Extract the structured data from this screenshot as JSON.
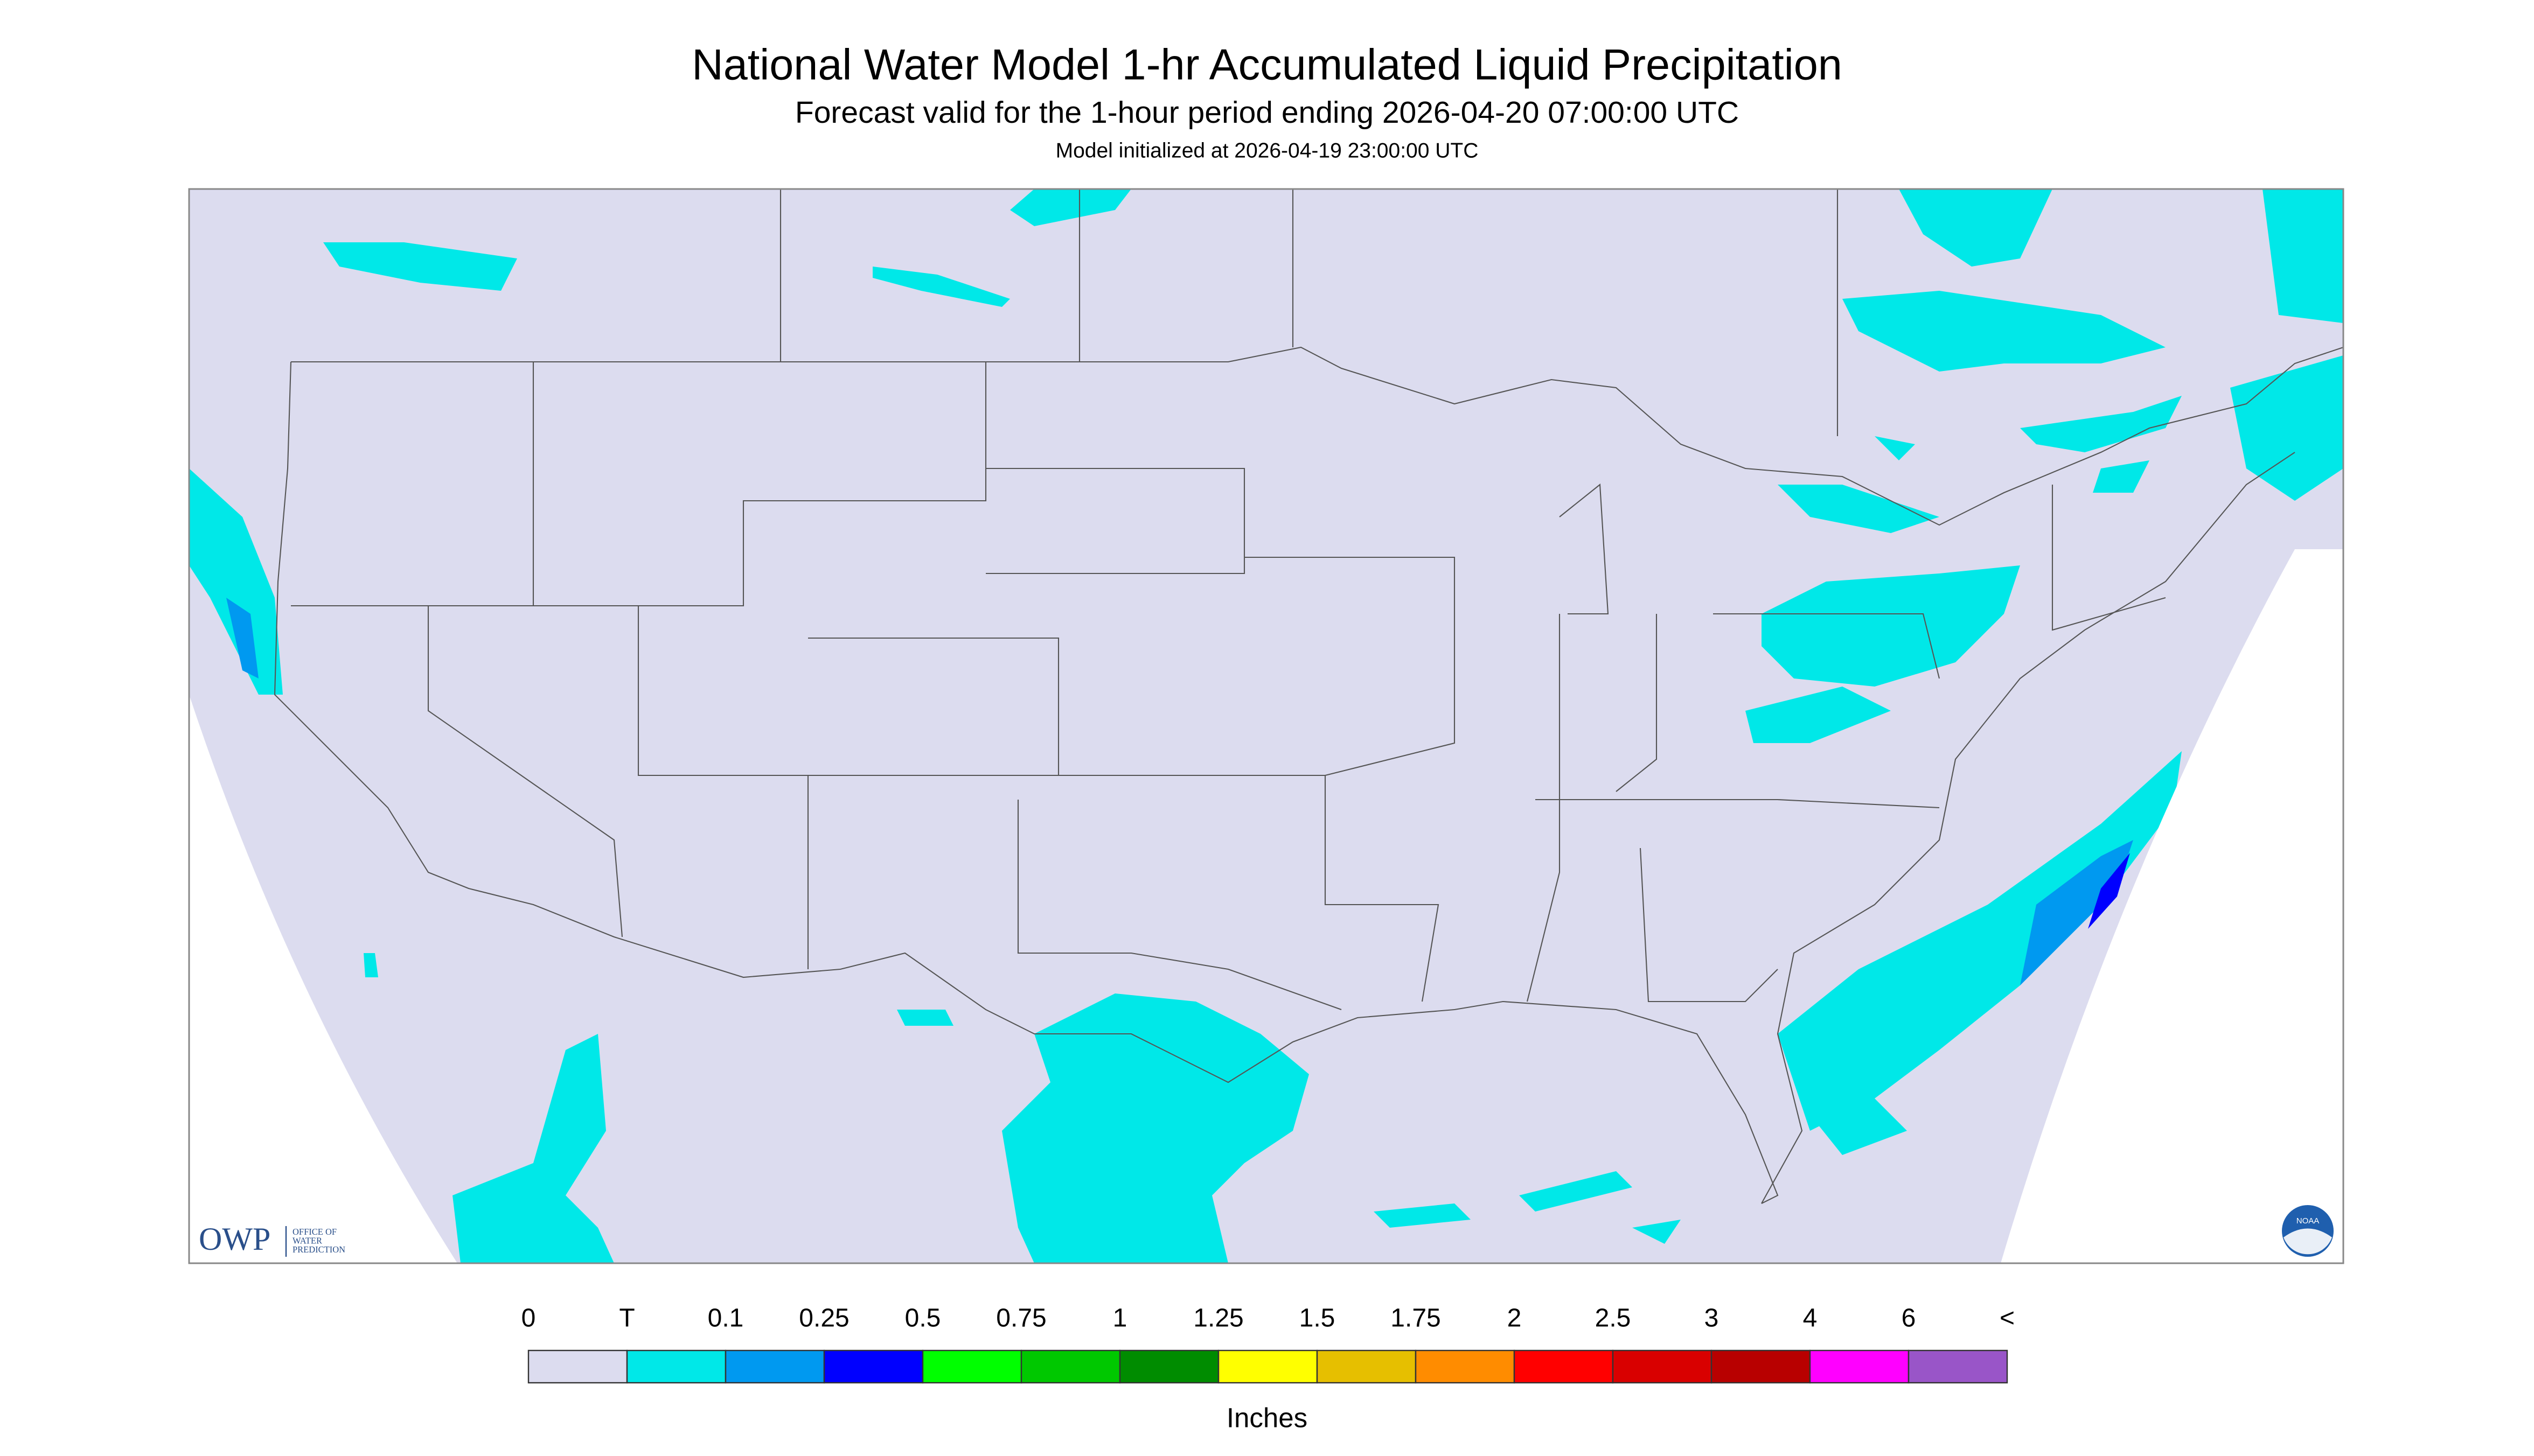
{
  "header": {
    "title": "National Water Model 1-hr Accumulated Liquid Precipitation",
    "subtitle": "Forecast valid for the 1-hour period ending 2026-04-20 07:00:00 UTC",
    "initialized": "Model initialized at 2026-04-19 23:00:00 UTC"
  },
  "legend": {
    "labels": [
      "0",
      "T",
      "0.1",
      "0.25",
      "0.5",
      "0.75",
      "1",
      "1.25",
      "1.5",
      "1.75",
      "2",
      "2.5",
      "3",
      "4",
      "6",
      "<"
    ],
    "colors": [
      "#dcdcef",
      "#00e8e8",
      "#0099f0",
      "#0000ff",
      "#00ff00",
      "#00c800",
      "#008c00",
      "#ffff00",
      "#e6bf00",
      "#ff8c00",
      "#ff0000",
      "#d90000",
      "#b80000",
      "#ff00ff",
      "#9955c8"
    ],
    "units": "Inches"
  },
  "logos": {
    "owp": "OWP",
    "owp_name": [
      "OFFICE OF",
      "WATER",
      "PREDICTION"
    ],
    "noaa": "NOAA"
  }
}
